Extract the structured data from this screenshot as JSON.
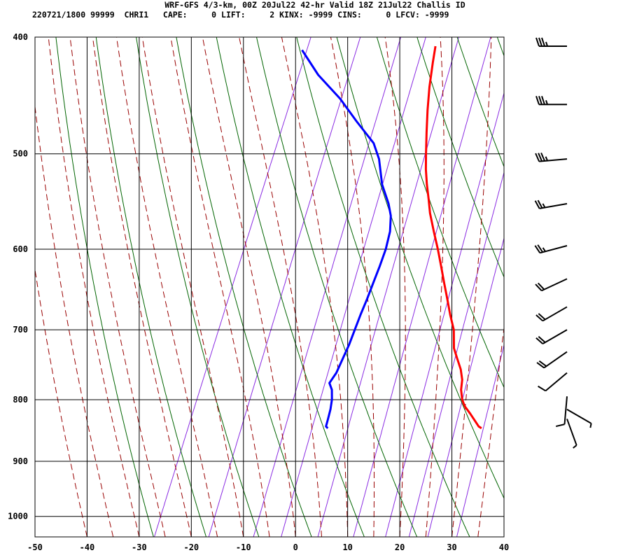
{
  "header": {
    "line1": "WRF-GFS 4/3-km, 00Z 20Jul22 42-hr Valid 18Z 21Jul22 Challis ID",
    "line2": "220721/1800 99999  CHRI1   CAPE:     0 LIFT:     2 KINX: -9999 CINS:     0 LFCV: -9999"
  },
  "chart_data": {
    "type": "skewt",
    "x_ticks": [
      -50,
      -40,
      -30,
      -20,
      -10,
      0,
      10,
      20,
      30,
      40
    ],
    "y_ticks": [
      400,
      500,
      600,
      700,
      800,
      900,
      1000
    ],
    "xlim": [
      -50,
      40
    ],
    "ylim": [
      1040,
      400
    ],
    "y_scale": "log",
    "grid": true,
    "colors": {
      "temperature": "#ff0000",
      "dewpoint": "#0000ff",
      "dry_adiabat": "#006400",
      "moist_adiabat": "#990000",
      "mixing_ratio": "#8a2be2",
      "grid": "#000000",
      "wind_barb": "#000000"
    },
    "series": [
      {
        "name": "Temperature",
        "pressure": [
          845,
          842,
          835,
          822,
          810,
          800,
          785,
          770,
          755,
          740,
          725,
          700,
          680,
          660,
          640,
          620,
          600,
          580,
          560,
          545,
          530,
          515,
          500,
          480,
          460,
          440,
          420,
          407
        ],
        "values": [
          27,
          26.3,
          25.4,
          23.7,
          22,
          21,
          20,
          19.4,
          18.3,
          16.8,
          15.3,
          13.8,
          11.9,
          10.1,
          8.2,
          6.3,
          4.3,
          2.1,
          -0.1,
          -1.5,
          -3,
          -4.4,
          -5.6,
          -7.2,
          -8.8,
          -10.3,
          -11.6,
          -12.4
        ]
      },
      {
        "name": "Dewpoint",
        "pressure": [
          845,
          842,
          830,
          815,
          800,
          785,
          775,
          760,
          740,
          720,
          700,
          680,
          660,
          640,
          620,
          600,
          580,
          563,
          550,
          530,
          505,
          490,
          470,
          450,
          430,
          410
        ],
        "values": [
          -2.5,
          -3,
          -3.2,
          -3.5,
          -4,
          -4.8,
          -5.8,
          -5.3,
          -5.2,
          -5.1,
          -5.2,
          -5.3,
          -5.3,
          -5.4,
          -5.5,
          -5.7,
          -6.3,
          -7.4,
          -8.8,
          -11.6,
          -14.2,
          -16.5,
          -21.5,
          -26.5,
          -32.6,
          -37.7
        ]
      }
    ],
    "wind_barbs": [
      {
        "pressure": 407,
        "direction": 270,
        "speed_kt": 35
      },
      {
        "pressure": 455,
        "direction": 270,
        "speed_kt": 35
      },
      {
        "pressure": 505,
        "direction": 265,
        "speed_kt": 35
      },
      {
        "pressure": 550,
        "direction": 260,
        "speed_kt": 25
      },
      {
        "pressure": 596,
        "direction": 255,
        "speed_kt": 25
      },
      {
        "pressure": 635,
        "direction": 245,
        "speed_kt": 20
      },
      {
        "pressure": 670,
        "direction": 240,
        "speed_kt": 20
      },
      {
        "pressure": 700,
        "direction": 240,
        "speed_kt": 20
      },
      {
        "pressure": 730,
        "direction": 235,
        "speed_kt": 20
      },
      {
        "pressure": 760,
        "direction": 230,
        "speed_kt": 10
      },
      {
        "pressure": 795,
        "direction": 185,
        "speed_kt": 10
      },
      {
        "pressure": 815,
        "direction": 120,
        "speed_kt": 5
      },
      {
        "pressure": 830,
        "direction": 160,
        "speed_kt": 5
      }
    ]
  }
}
